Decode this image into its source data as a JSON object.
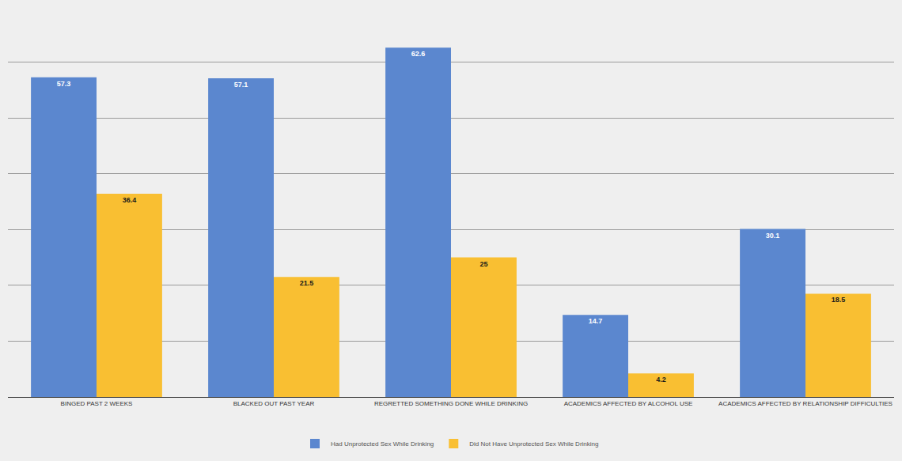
{
  "chart_data": {
    "type": "bar",
    "categories": [
      "BINGED PAST 2 WEEKS",
      "BLACKED OUT PAST YEAR",
      "REGRETTED SOMETHING DONE WHILE DRINKING",
      "ACADEMICS AFFECTED BY ALCOHOL USE",
      "ACADEMICS AFFECTED BY RELATIONSHIP DIFFICULTIES"
    ],
    "series": [
      {
        "name": "Had Unprotected Sex While Drinking",
        "color": "#5b87cf",
        "values": [
          57.3,
          57.1,
          62.6,
          14.7,
          30.1
        ]
      },
      {
        "name": "Did Not Have Unprotected Sex While Drinking",
        "color": "#f9bf32",
        "values": [
          36.4,
          21.5,
          25,
          4.2,
          18.5
        ]
      }
    ],
    "ylim": [
      0,
      70
    ],
    "yticks": [
      0,
      10,
      20,
      30,
      40,
      50,
      60,
      70
    ],
    "grid": true,
    "legend": "bottom",
    "data_labels": true,
    "tick_labels": "x"
  }
}
